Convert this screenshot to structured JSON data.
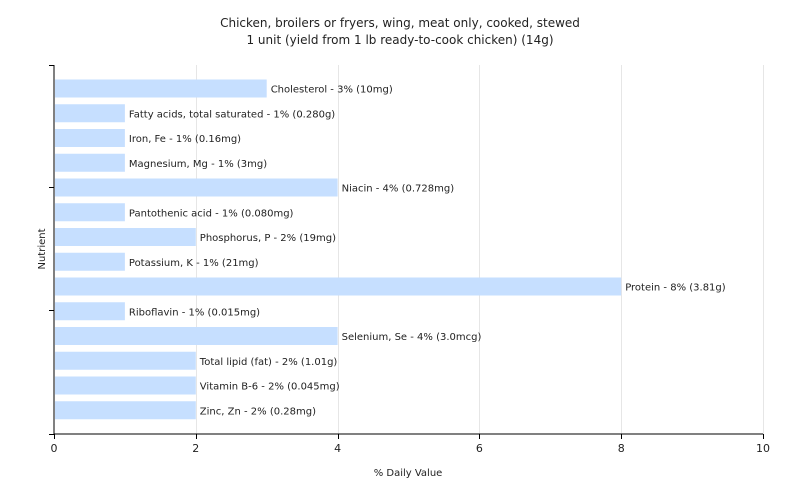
{
  "chart_data": {
    "type": "bar",
    "orientation": "horizontal",
    "title": "Chicken, broilers or fryers, wing, meat only, cooked, stewed",
    "subtitle": "1 unit (yield from 1 lb ready-to-cook chicken) (14g)",
    "xlabel": "% Daily Value",
    "ylabel": "Nutrient",
    "xlim": [
      0,
      10
    ],
    "xticks": [
      "0",
      "2",
      "4",
      "6",
      "8",
      "10"
    ],
    "grid": true,
    "bar_color": "#c6dfff",
    "categories": [
      "Cholesterol",
      "Fatty acids, total saturated",
      "Iron, Fe",
      "Magnesium, Mg",
      "Niacin",
      "Pantothenic acid",
      "Phosphorus, P",
      "Potassium, K",
      "Protein",
      "Riboflavin",
      "Selenium, Se",
      "Total lipid (fat)",
      "Vitamin B-6",
      "Zinc, Zn"
    ],
    "values": [
      3,
      1,
      1,
      1,
      4,
      1,
      2,
      1,
      8,
      1,
      4,
      2,
      2,
      2
    ],
    "data_labels": [
      "Cholesterol - 3% (10mg)",
      "Fatty acids, total saturated - 1% (0.280g)",
      "Iron, Fe - 1% (0.16mg)",
      "Magnesium, Mg - 1% (3mg)",
      "Niacin - 4% (0.728mg)",
      "Pantothenic acid - 1% (0.080mg)",
      "Phosphorus, P - 2% (19mg)",
      "Potassium, K - 1% (21mg)",
      "Protein - 8% (3.81g)",
      "Riboflavin - 1% (0.015mg)",
      "Selenium, Se - 4% (3.0mcg)",
      "Total lipid (fat) - 2% (1.01g)",
      "Vitamin B-6 - 2% (0.045mg)",
      "Zinc, Zn - 2% (0.28mg)"
    ]
  }
}
